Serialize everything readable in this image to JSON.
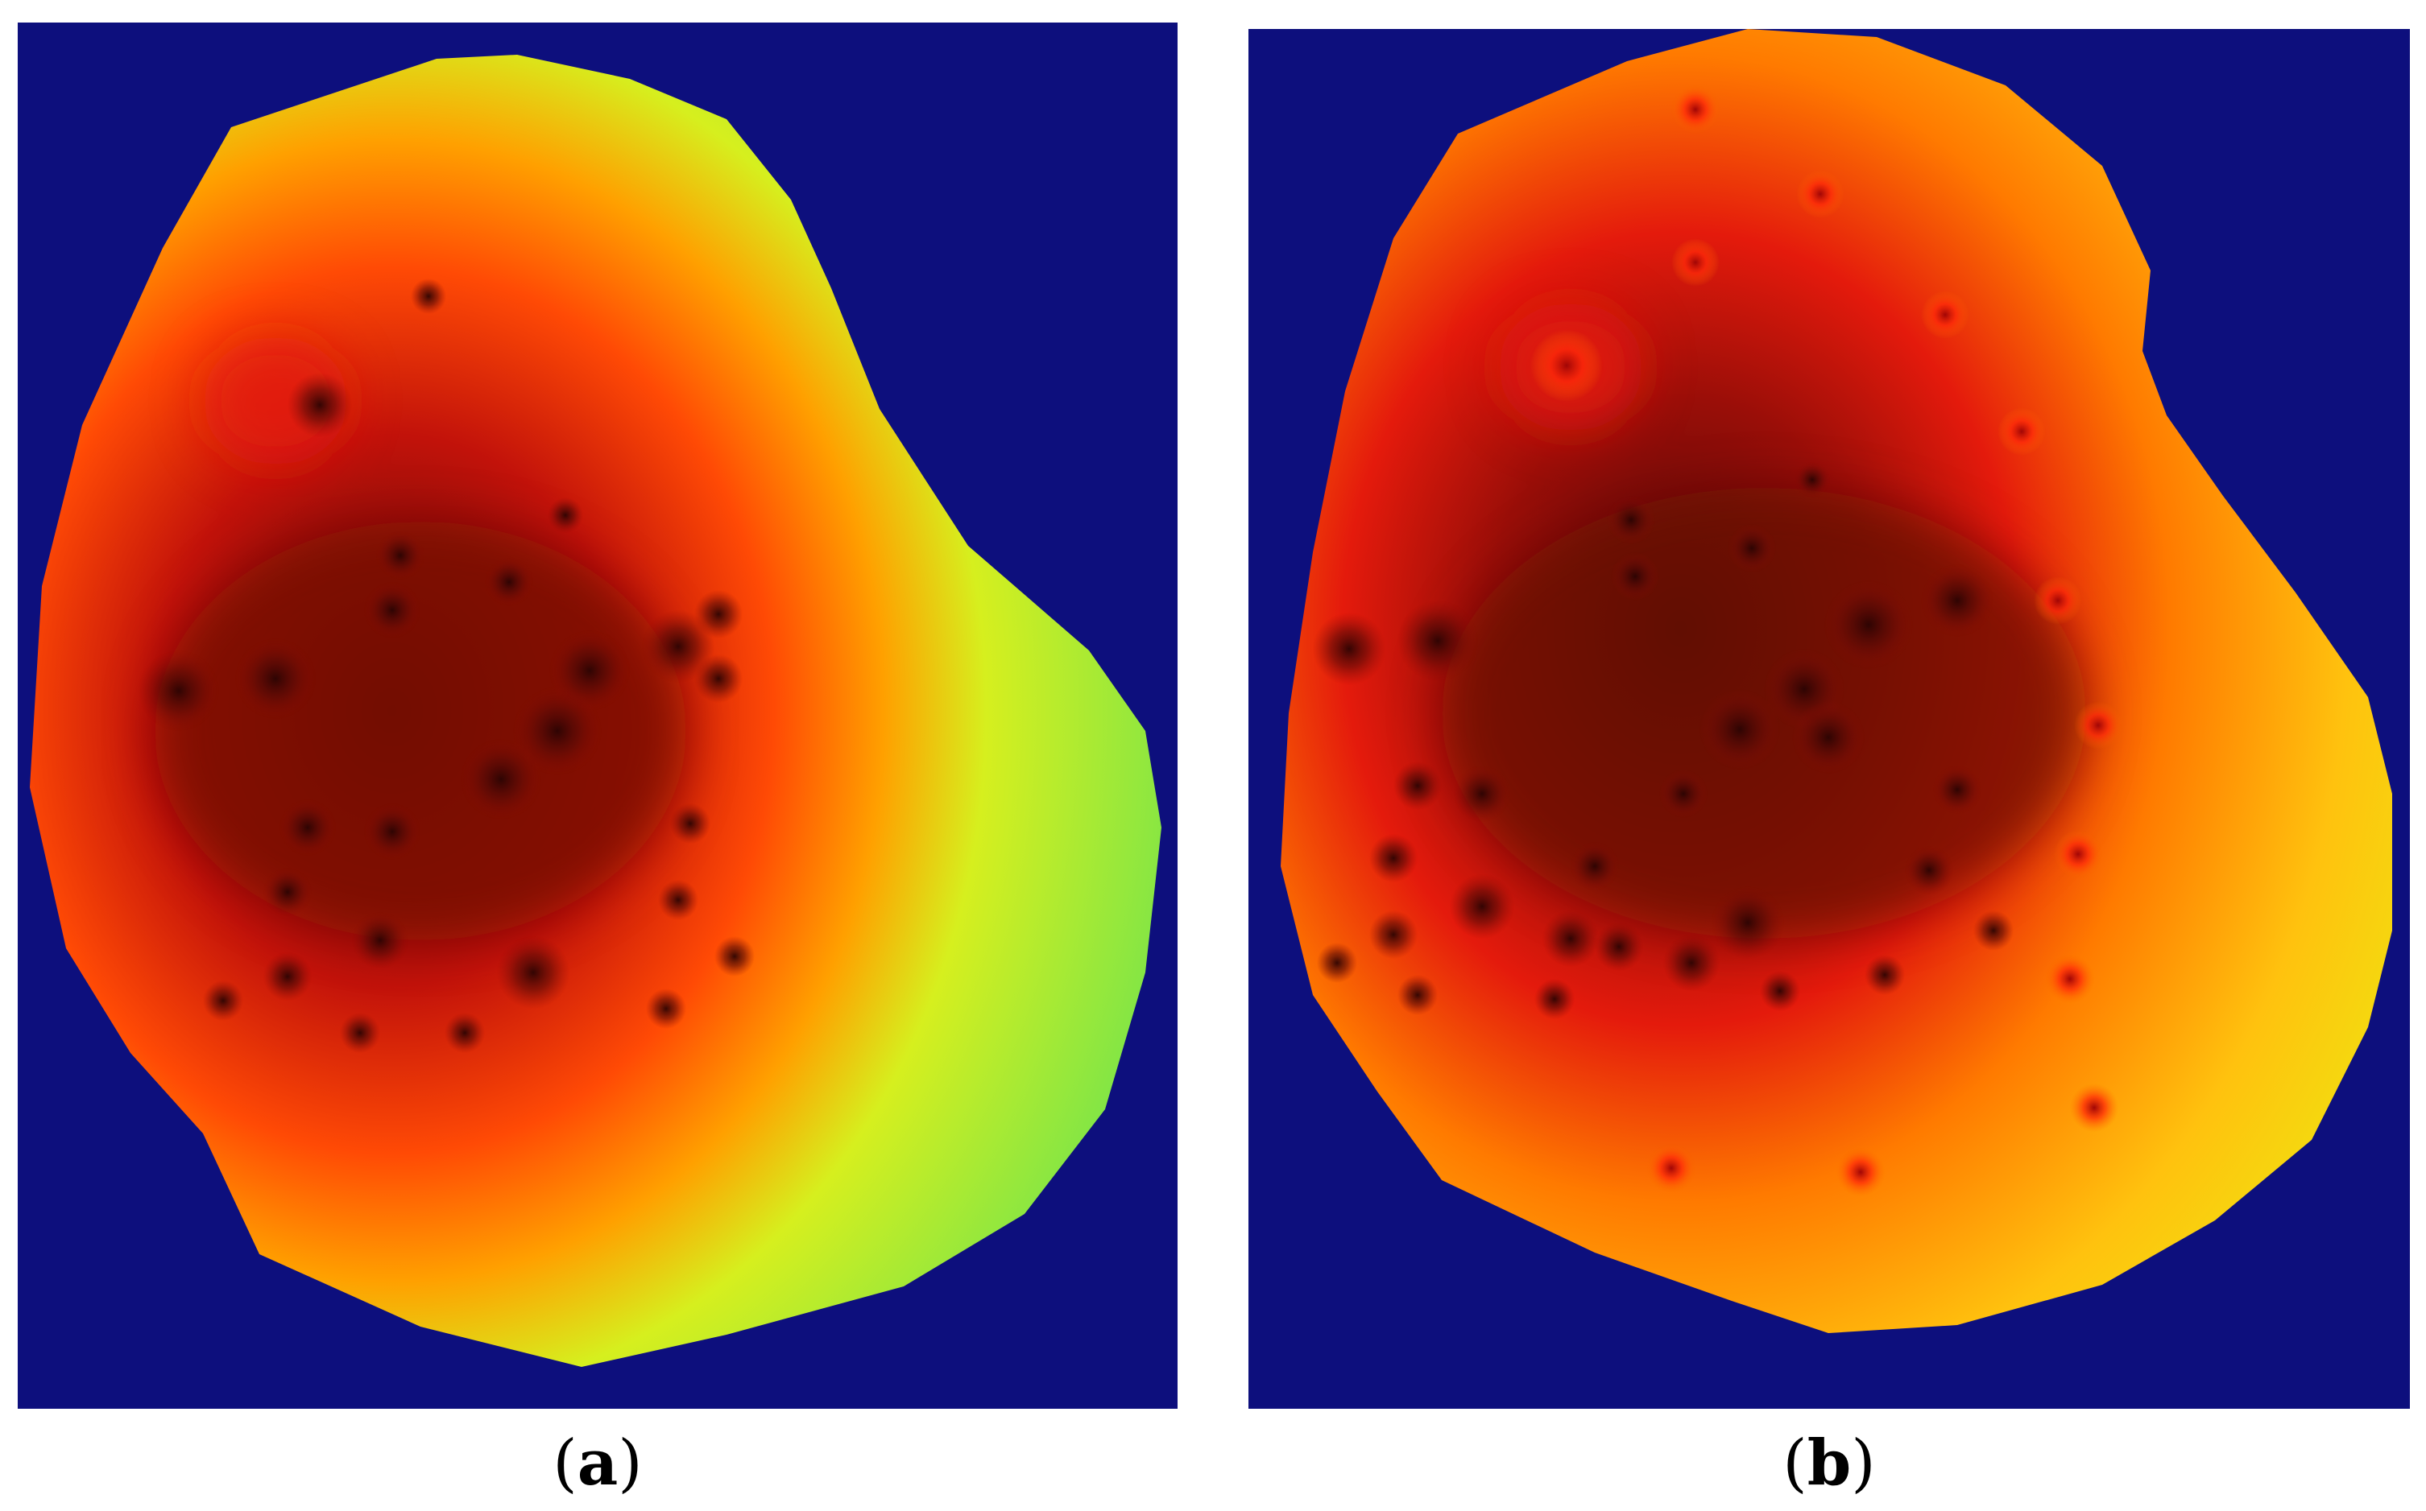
{
  "figure": {
    "panels": [
      {
        "id": "a",
        "caption_open": "(",
        "caption_letter": "a",
        "caption_close": ")",
        "colormap": {
          "background": "#0d0f7d",
          "outer": "#6be350",
          "mid": "#d6ef1e",
          "warm": "#ff8a00",
          "hot": "#e41a0c",
          "core": "#4c0a08"
        }
      },
      {
        "id": "b",
        "caption_open": "(",
        "caption_letter": "b",
        "caption_close": ")",
        "colormap": {
          "background": "#0d0f7d",
          "outer": "#e9f111",
          "mid": "#ffc20e",
          "warm": "#ff7a00",
          "hot": "#e41a0c",
          "core": "#4c0a08"
        }
      }
    ]
  }
}
